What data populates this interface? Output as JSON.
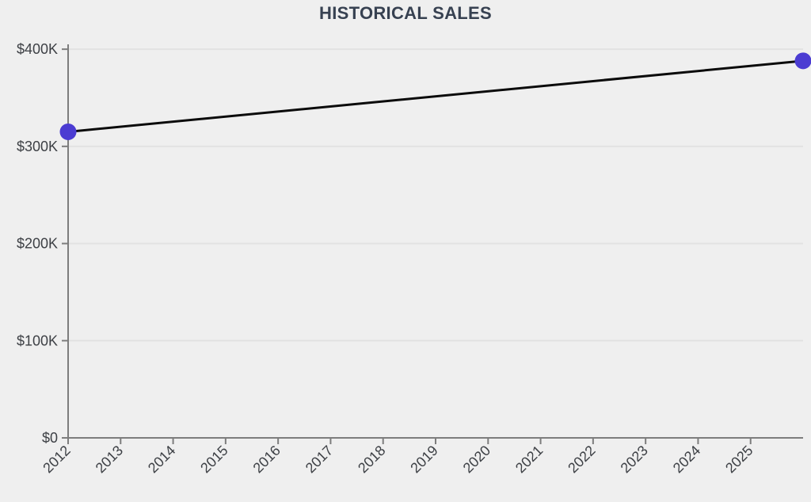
{
  "chart_data": {
    "type": "line",
    "title": "HISTORICAL SALES",
    "xlabel": "",
    "ylabel": "",
    "legend": "none",
    "grid": "horizontal-only",
    "x_range": [
      2012,
      2026
    ],
    "y_range": [
      0,
      405000
    ],
    "series": [
      {
        "name": "historical-sales",
        "x": [
          2012,
          2026
        ],
        "y": [
          315000,
          388000
        ]
      }
    ],
    "x_ticks": [
      {
        "value": 2012,
        "label": "2012"
      },
      {
        "value": 2013,
        "label": "2013"
      },
      {
        "value": 2014,
        "label": "2014"
      },
      {
        "value": 2015,
        "label": "2015"
      },
      {
        "value": 2016,
        "label": "2016"
      },
      {
        "value": 2017,
        "label": "2017"
      },
      {
        "value": 2018,
        "label": "2018"
      },
      {
        "value": 2019,
        "label": "2019"
      },
      {
        "value": 2020,
        "label": "2020"
      },
      {
        "value": 2021,
        "label": "2021"
      },
      {
        "value": 2022,
        "label": "2022"
      },
      {
        "value": 2023,
        "label": "2023"
      },
      {
        "value": 2024,
        "label": "2024"
      },
      {
        "value": 2025,
        "label": "2025"
      }
    ],
    "y_ticks": [
      {
        "value": 0,
        "label": "$0"
      },
      {
        "value": 100000,
        "label": "$100K"
      },
      {
        "value": 200000,
        "label": "$200K"
      },
      {
        "value": 300000,
        "label": "$300K"
      },
      {
        "value": 400000,
        "label": "$400K"
      }
    ],
    "colors": {
      "background": "#efefef",
      "title": "#374151",
      "axis": "#7d7d7d",
      "tick_text": "#3d4045",
      "grid": "#e2e2e2",
      "line": "#0b0b0b",
      "point": "#4b3cd2"
    }
  }
}
